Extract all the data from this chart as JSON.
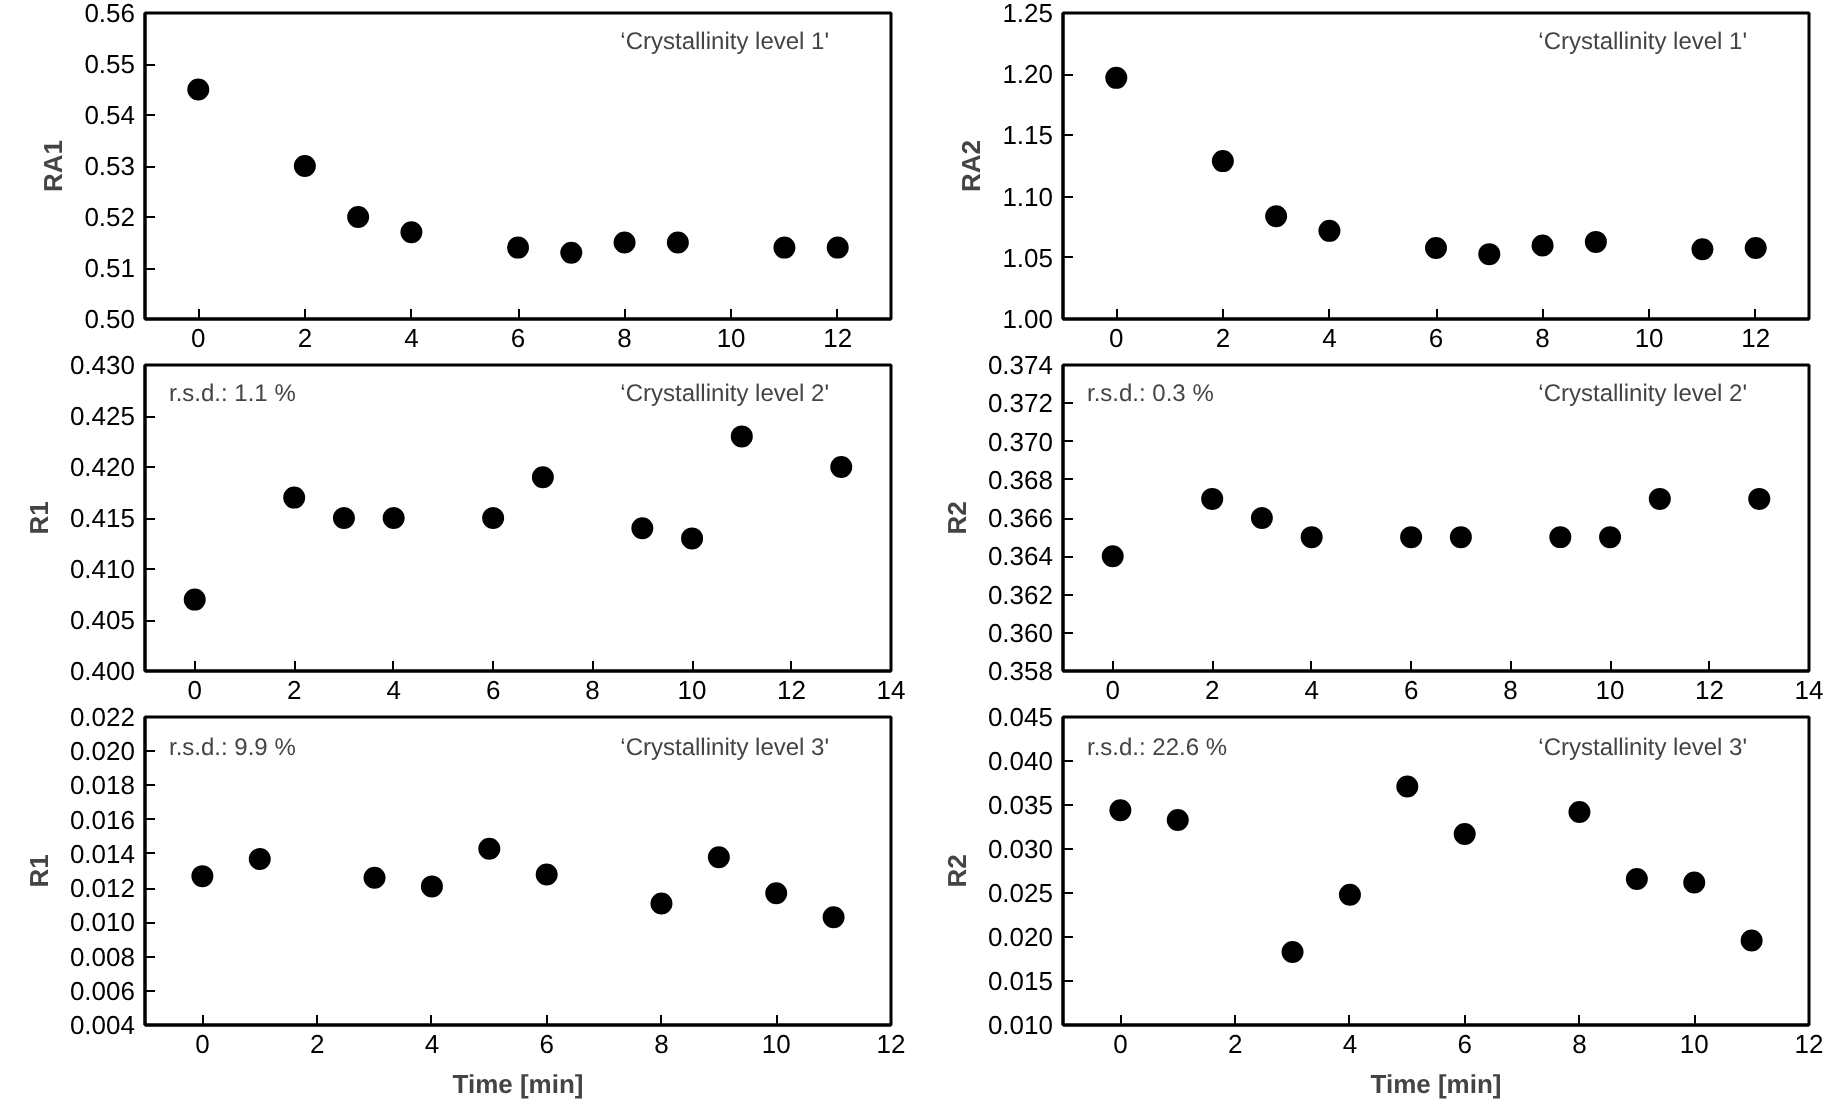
{
  "chart_data": [
    {
      "type": "scatter",
      "ylabel": "RA1",
      "marker": "circle",
      "grid": false,
      "annotations": [
        "‘Crystallinity level 1'"
      ],
      "x": [
        0,
        2,
        3,
        4,
        6,
        7,
        8,
        9,
        11,
        12
      ],
      "series": [
        {
          "color": "#000000",
          "values": [
            0.545,
            0.53,
            0.52,
            0.517,
            0.514,
            0.513,
            0.515,
            0.515,
            0.514,
            0.514
          ]
        }
      ],
      "xlim": [
        -1,
        13
      ],
      "xticks": [
        0,
        2,
        4,
        6,
        8,
        10,
        12
      ],
      "ylim": [
        0.5,
        0.56
      ],
      "yticks": [
        {
          "value": 0.5,
          "label": "0.50"
        },
        0.51,
        0.52,
        0.53,
        0.54,
        0.55,
        0.56
      ]
    },
    {
      "type": "scatter",
      "ylabel": "RA2",
      "marker": "circle",
      "grid": false,
      "annotations": [
        "‘Crystallinity level 1'"
      ],
      "x": [
        0,
        2,
        3,
        4,
        6,
        7,
        8,
        9,
        11,
        12
      ],
      "series": [
        {
          "color": "#000000",
          "values": [
            1.197,
            1.129,
            1.084,
            1.072,
            1.058,
            1.053,
            1.06,
            1.063,
            1.057,
            1.058
          ]
        }
      ],
      "xlim": [
        -1,
        13
      ],
      "xticks": [
        0,
        2,
        4,
        6,
        8,
        10,
        12
      ],
      "ylim": [
        1.0,
        1.25
      ],
      "yticks": [
        {
          "value": 1.0,
          "label": "1.00"
        },
        1.05,
        {
          "value": 1.1,
          "label": "1.10"
        },
        1.15,
        {
          "value": 1.2,
          "label": "1.20"
        },
        1.25
      ]
    },
    {
      "type": "scatter",
      "ylabel": "R1",
      "marker": "circle",
      "grid": false,
      "annotations": [
        "r.s.d.: 1.1 %",
        "‘Crystallinity level 2'"
      ],
      "x": [
        0,
        2,
        3,
        4,
        6,
        7,
        9,
        10,
        11,
        13
      ],
      "series": [
        {
          "color": "#000000",
          "values": [
            0.407,
            0.417,
            0.415,
            0.415,
            0.415,
            0.419,
            0.414,
            0.413,
            0.423,
            0.42
          ]
        }
      ],
      "xlim": [
        -1,
        14
      ],
      "xticks": [
        0,
        2,
        4,
        6,
        8,
        10,
        12,
        14
      ],
      "ylim": [
        0.4,
        0.43
      ],
      "yticks": [
        {
          "value": 0.4,
          "label": "0.400"
        },
        0.405,
        {
          "value": 0.41,
          "label": "0.410"
        },
        0.415,
        {
          "value": 0.42,
          "label": "0.420"
        },
        0.425,
        {
          "value": 0.43,
          "label": "0.430"
        }
      ]
    },
    {
      "type": "scatter",
      "ylabel": "R2",
      "marker": "circle",
      "grid": false,
      "annotations": [
        "r.s.d.: 0.3 %",
        "‘Crystallinity level 2'"
      ],
      "x": [
        0,
        2,
        3,
        4,
        6,
        7,
        9,
        10,
        11,
        13
      ],
      "series": [
        {
          "color": "#000000",
          "values": [
            0.364,
            0.367,
            0.366,
            0.365,
            0.365,
            0.365,
            0.365,
            0.365,
            0.367,
            0.367
          ]
        }
      ],
      "xlim": [
        -1,
        14
      ],
      "xticks": [
        0,
        2,
        4,
        6,
        8,
        10,
        12,
        14
      ],
      "ylim": [
        0.358,
        0.374
      ],
      "yticks": [
        0.358,
        {
          "value": 0.36,
          "label": "0.360"
        },
        0.362,
        0.364,
        0.366,
        0.368,
        {
          "value": 0.37,
          "label": "0.370"
        },
        0.372,
        0.374
      ]
    },
    {
      "type": "scatter",
      "xlabel": "Time [min]",
      "ylabel": "R1",
      "marker": "circle",
      "grid": false,
      "annotations": [
        "r.s.d.: 9.9 %",
        "‘Crystallinity level 3'"
      ],
      "x": [
        0,
        1,
        3,
        4,
        5,
        6,
        8,
        9,
        10,
        11
      ],
      "series": [
        {
          "color": "#000000",
          "values": [
            0.0127,
            0.0137,
            0.0126,
            0.0121,
            0.0143,
            0.0128,
            0.0111,
            0.0138,
            0.0117,
            0.0103
          ]
        }
      ],
      "xlim": [
        -1,
        12
      ],
      "xticks": [
        0,
        2,
        4,
        6,
        8,
        10,
        12
      ],
      "ylim": [
        0.004,
        0.022
      ],
      "yticks": [
        0.004,
        0.006,
        0.008,
        {
          "value": 0.01,
          "label": "0.010"
        },
        0.012,
        0.014,
        0.016,
        0.018,
        {
          "value": 0.02,
          "label": "0.020"
        },
        0.022
      ]
    },
    {
      "type": "scatter",
      "xlabel": "Time [min]",
      "ylabel": "R2",
      "marker": "circle",
      "grid": false,
      "annotations": [
        "r.s.d.: 22.6 %",
        "‘Crystallinity level 3'"
      ],
      "x": [
        0,
        1,
        3,
        4,
        5,
        6,
        8,
        9,
        10,
        11
      ],
      "series": [
        {
          "color": "#000000",
          "values": [
            0.0344,
            0.0333,
            0.0183,
            0.0248,
            0.0371,
            0.0317,
            0.0342,
            0.0266,
            0.0262,
            0.0196
          ]
        }
      ],
      "xlim": [
        -1,
        12
      ],
      "xticks": [
        0,
        2,
        4,
        6,
        8,
        10,
        12
      ],
      "ylim": [
        0.01,
        0.045
      ],
      "yticks": [
        {
          "value": 0.01,
          "label": "0.010"
        },
        0.015,
        {
          "value": 0.02,
          "label": "0.020"
        },
        0.025,
        {
          "value": 0.03,
          "label": "0.030"
        },
        0.035,
        {
          "value": 0.04,
          "label": "0.040"
        },
        0.045
      ]
    }
  ]
}
